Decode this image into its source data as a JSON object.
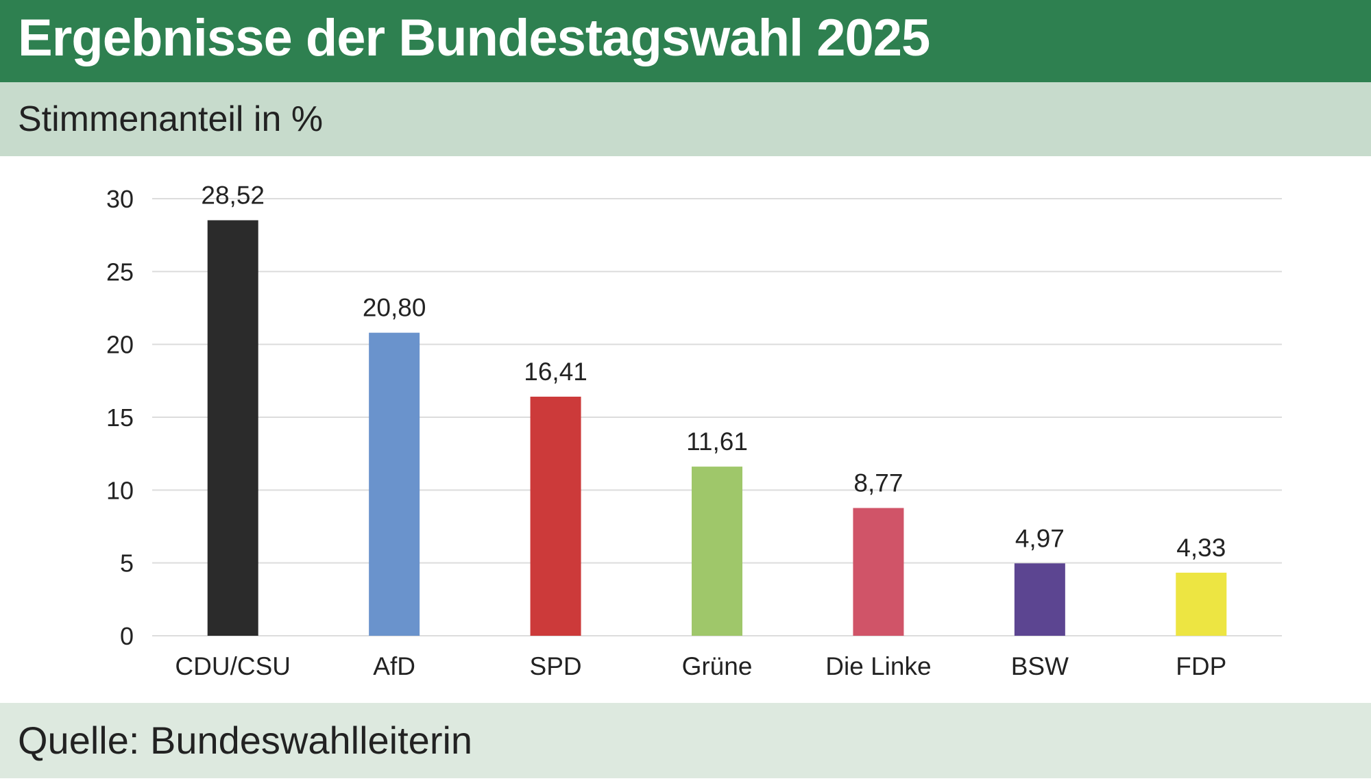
{
  "header": {
    "title": "Ergebnisse der Bundestagswahl 2025",
    "subtitle": "Stimmenanteil in %"
  },
  "footer": {
    "source": "Quelle: Bundeswahlleiterin"
  },
  "colors": {
    "header_bg": "#2e8050",
    "subtitle_bg": "#c7dbcc",
    "footer_bg": "#dde9df"
  },
  "chart_data": {
    "type": "bar",
    "title": "Ergebnisse der Bundestagswahl 2025",
    "subtitle": "Stimmenanteil in %",
    "categories": [
      "CDU/CSU",
      "AfD",
      "SPD",
      "Grüne",
      "Die Linke",
      "BSW",
      "FDP"
    ],
    "values": [
      28.52,
      20.8,
      16.41,
      11.61,
      8.77,
      4.97,
      4.33
    ],
    "value_labels": [
      "28,52",
      "20,80",
      "16,41",
      "11,61",
      "8,77",
      "4,97",
      "4,33"
    ],
    "colors": [
      "#2b2b2b",
      "#6a93cc",
      "#cc3a3a",
      "#9fc76a",
      "#d05468",
      "#5c4591",
      "#ede542"
    ],
    "yticks": [
      0,
      5,
      10,
      15,
      20,
      25,
      30
    ],
    "ylim": [
      0,
      30
    ],
    "xlabel": "",
    "ylabel": "",
    "grid": true,
    "legend": "none"
  }
}
